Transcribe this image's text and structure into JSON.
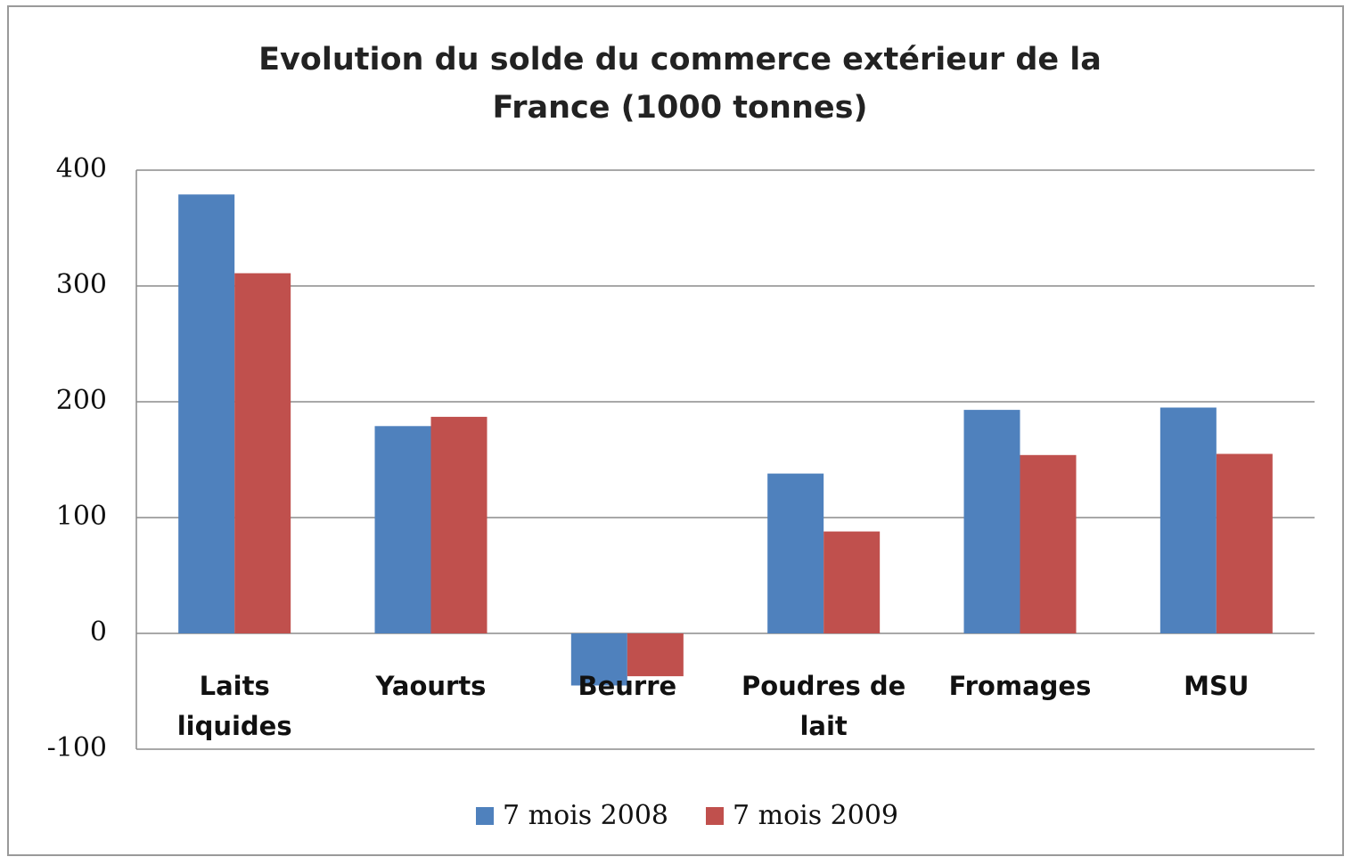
{
  "chart_data": {
    "type": "bar",
    "title": "Evolution du solde du commerce extérieur de la France (1000 tonnes)",
    "categories": [
      "Laits liquides",
      "Yaourts",
      "Beurre",
      "Poudres de lait",
      "Fromages",
      "MSU"
    ],
    "series": [
      {
        "name": "7 mois 2008",
        "color": "#4f81bd",
        "values": [
          379,
          179,
          -45,
          138,
          193,
          195
        ]
      },
      {
        "name": "7 mois 2009",
        "color": "#c0504d",
        "values": [
          311,
          187,
          -37,
          88,
          154,
          155
        ]
      }
    ],
    "ylim": [
      -100,
      400
    ],
    "yticks": [
      -100,
      0,
      100,
      200,
      300,
      400
    ],
    "grid": true,
    "legend": "bottom"
  }
}
